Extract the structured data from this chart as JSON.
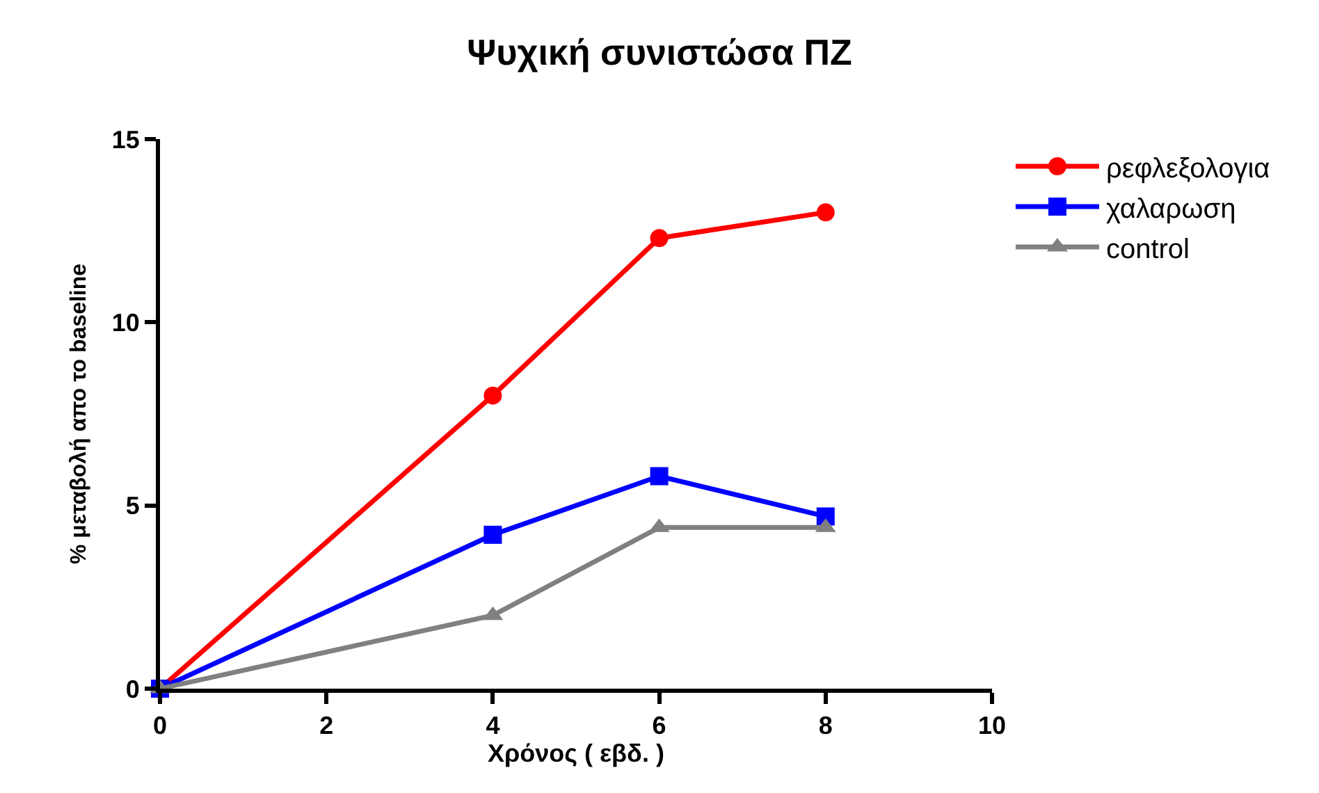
{
  "chart_data": {
    "type": "line",
    "title": "Ψυχική συνιστώσα ΠΖ",
    "xlabel": "Χρόνος ( εβδ. )",
    "ylabel": "% μεταβολή απο το baseline",
    "x": [
      0,
      4,
      6,
      8
    ],
    "series": [
      {
        "name": "ρεφλεξολογια",
        "color": "#ff0000",
        "marker": "circle",
        "values": [
          0,
          8,
          12.3,
          13
        ]
      },
      {
        "name": "χαλαρωση",
        "color": "#0000ff",
        "marker": "square",
        "values": [
          0,
          4.2,
          5.8,
          4.7
        ]
      },
      {
        "name": "control",
        "color": "#808080",
        "marker": "triangle",
        "values": [
          0,
          2,
          4.4,
          4.4
        ]
      }
    ],
    "xlim": [
      0,
      10
    ],
    "xticks": [
      0,
      2,
      4,
      6,
      8,
      10
    ],
    "ylim": [
      0,
      15
    ],
    "yticks": [
      0,
      5,
      10,
      15
    ],
    "legend": "top right",
    "line_style": "solid"
  }
}
